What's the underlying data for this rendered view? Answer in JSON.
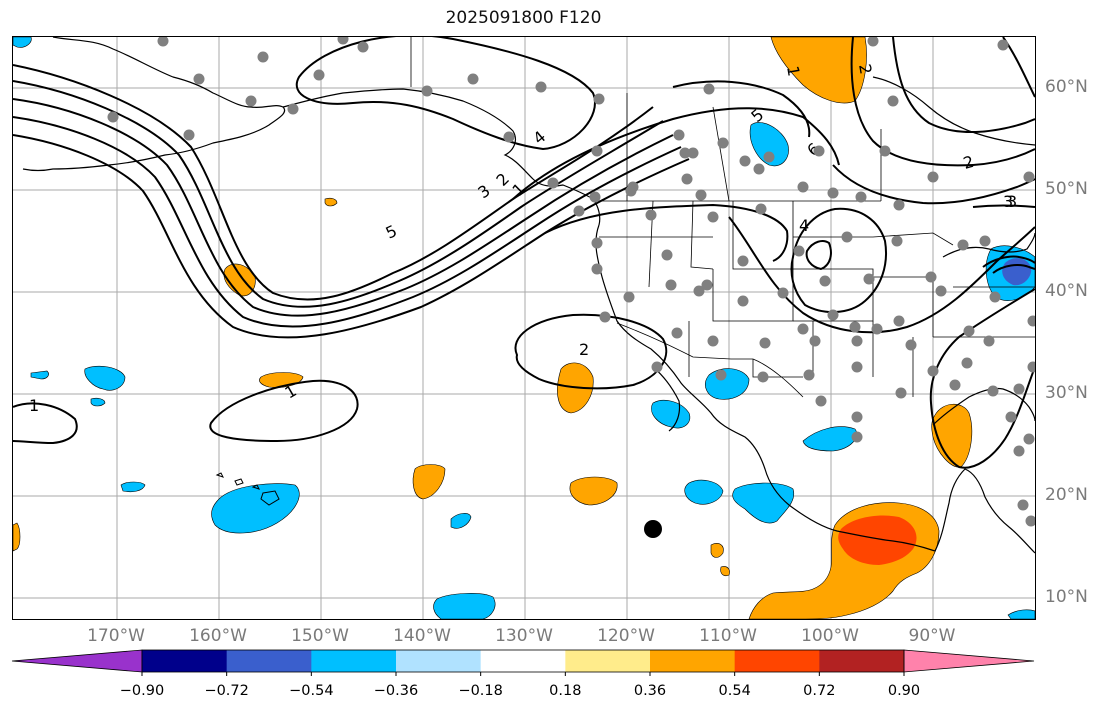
{
  "title": "2025091800 F120",
  "lon_labels": [
    "170°W",
    "160°W",
    "150°W",
    "140°W",
    "130°W",
    "120°W",
    "110°W",
    "100°W",
    "90°W"
  ],
  "lat_labels": [
    "60°N",
    "50°N",
    "40°N",
    "30°N",
    "20°N",
    "10°N"
  ],
  "contour_labels": [
    "1",
    "2",
    "3",
    "4",
    "5",
    "6",
    "1",
    "2",
    "3",
    "4",
    "5",
    "1",
    "2",
    "3",
    "1",
    "2"
  ],
  "colorbar": {
    "colors": [
      "#9932cc",
      "#00008b",
      "#3a5fcd",
      "#00bfff",
      "#b0e2ff",
      "#ffffff",
      "#ffec8b",
      "#ffa500",
      "#ff4500",
      "#b22222",
      "#ff82ab"
    ],
    "ticks": [
      "−0.90",
      "−0.72",
      "−0.54",
      "−0.36",
      "−0.18",
      "0.18",
      "0.36",
      "0.54",
      "0.72",
      "0.90"
    ]
  },
  "colors": {
    "negative_fill": "#00bfff",
    "positive_fill": "#ffa500",
    "strong_positive_fill": "#ff4500",
    "station_dot": "#808080",
    "grid": "#aaaaaa"
  }
}
